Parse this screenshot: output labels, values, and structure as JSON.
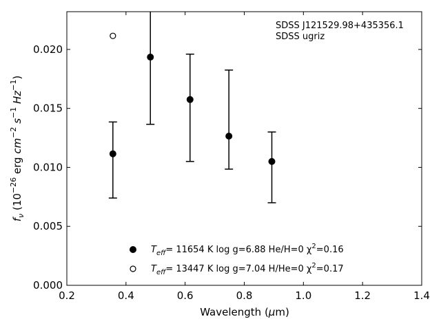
{
  "chart_data": {
    "type": "scatter",
    "title": "",
    "xlabel": "Wavelength (μm)",
    "ylabel": "f_ν (10^-26 erg cm^-2 s^-1 Hz^-1)",
    "xlim": [
      0.2,
      1.4
    ],
    "ylim": [
      0.0,
      0.0232
    ],
    "xticks": [
      0.2,
      0.4,
      0.6,
      0.8,
      1.0,
      1.2,
      1.4
    ],
    "xtick_labels": [
      "0.2",
      "0.4",
      "0.6",
      "0.8",
      "1.0",
      "1.2",
      "1.4"
    ],
    "yticks": [
      0.0,
      0.005,
      0.01,
      0.015,
      0.02
    ],
    "ytick_labels": [
      "0.000",
      "0.005",
      "0.010",
      "0.015",
      "0.020"
    ],
    "grid": false,
    "annotations": [
      "SDSS J121529.98+435356.1",
      "SDSS ugriz"
    ],
    "series": [
      {
        "name": "T_eff= 11654 K  log g=6.88  He/H=0  χ²=0.16",
        "marker": "filled-circle",
        "x": [
          0.3557,
          0.4825,
          0.6166,
          0.748,
          0.8932
        ],
        "y": [
          0.01115,
          0.01935,
          0.01575,
          0.01265,
          0.0105
        ],
        "y_err_low": [
          0.00375,
          0.0057,
          0.00525,
          0.0028,
          0.0035
        ],
        "y_err_high": [
          0.0027,
          0.0045,
          0.00385,
          0.0056,
          0.0025
        ]
      },
      {
        "name": "T_eff= 13447 K  log g=7.04  H/He=0  χ²=0.17",
        "marker": "open-circle",
        "x": [
          0.3557
        ],
        "y": [
          0.02115
        ]
      }
    ],
    "legend": {
      "position": "lower-center",
      "entries": [
        {
          "marker": "filled-circle",
          "teff_label": "T",
          "teff_sub": "eff",
          "teff_rest": "= 11654 K  log g=6.88  He/H=0  χ",
          "chi_sup": "2",
          "chi_rest": "=0.16"
        },
        {
          "marker": "open-circle",
          "teff_label": "T",
          "teff_sub": "eff",
          "teff_rest": "= 13447 K  log g=7.04  H/He=0  χ",
          "chi_sup": "2",
          "chi_rest": "=0.17"
        }
      ]
    },
    "xlabel_parts": {
      "main": "Wavelength (",
      "mu": "μ",
      "unit": "m)"
    },
    "ylabel_parts": {
      "f": "f",
      "nu": "ν",
      "open": " (10",
      "exp1": "−26",
      "erg": " erg ",
      "cm": "cm",
      "exp2": "−2",
      "s": " s",
      "exp3": "−1",
      "hz": " Hz",
      "exp4": "−1",
      "close": ")"
    }
  }
}
